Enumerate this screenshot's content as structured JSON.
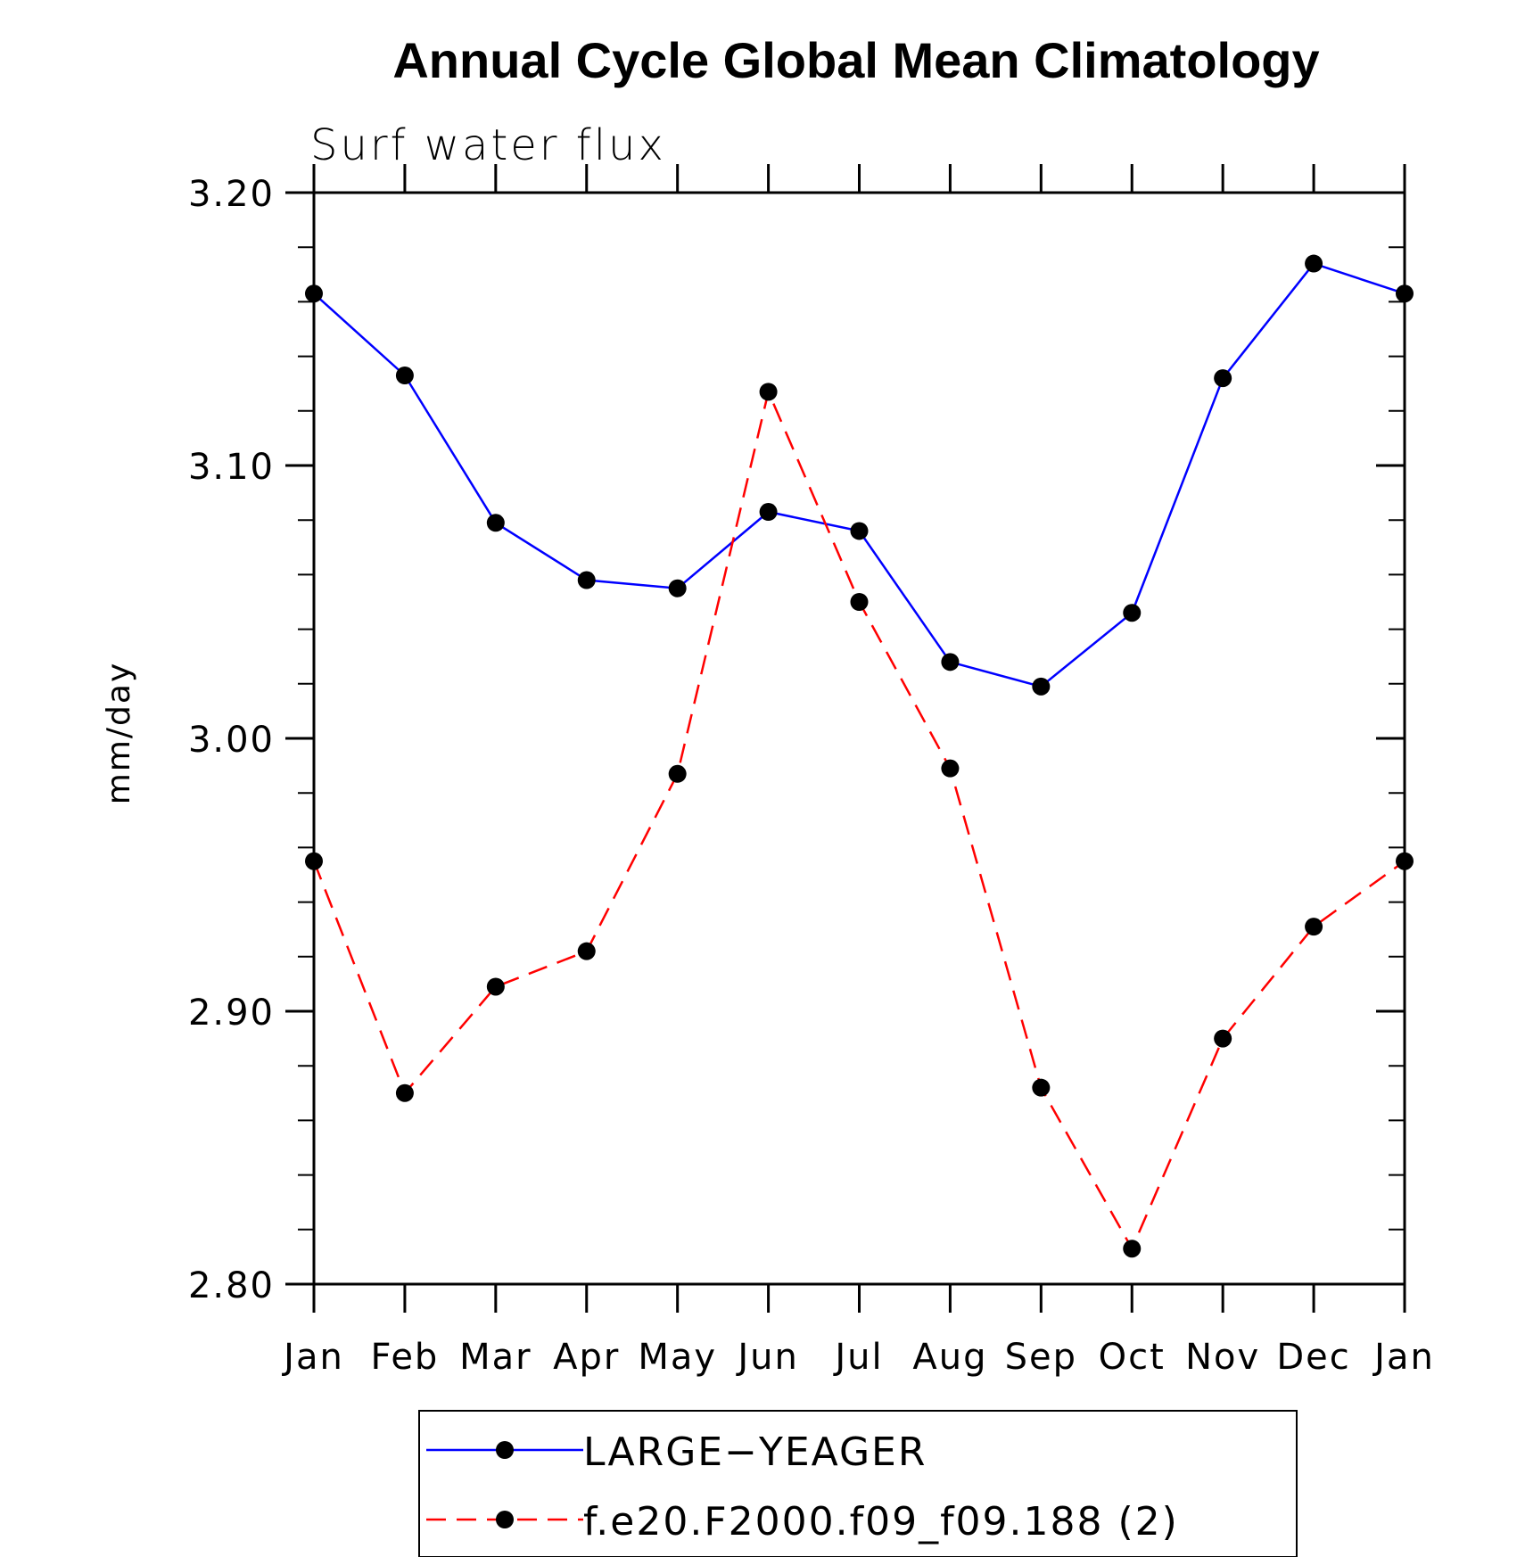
{
  "chart_data": {
    "type": "line",
    "title": "Annual Cycle Global Mean Climatology",
    "subtitle": "Surf water flux",
    "xlabel": "",
    "ylabel": "mm/day",
    "categories": [
      "Jan",
      "Feb",
      "Mar",
      "Apr",
      "May",
      "Jun",
      "Jul",
      "Aug",
      "Sep",
      "Oct",
      "Nov",
      "Dec",
      "Jan"
    ],
    "ylim": [
      2.8,
      3.2
    ],
    "y_ticks": [
      "3.20",
      "3.10",
      "3.00",
      "2.90",
      "2.80"
    ],
    "y_tick_values": [
      3.2,
      3.1,
      3.0,
      2.9,
      2.8
    ],
    "y_minor_step": 0.02,
    "grid": false,
    "legend_position": "bottom-center",
    "series": [
      {
        "name": "LARGE−YEAGER",
        "color": "#0000ff",
        "line_style": "solid",
        "marker": "filled-circle",
        "values": [
          3.163,
          3.133,
          3.079,
          3.058,
          3.055,
          3.083,
          3.076,
          3.028,
          3.019,
          3.046,
          3.132,
          3.174,
          3.163
        ]
      },
      {
        "name": "f.e20.F2000.f09_f09.188 (2)",
        "color": "#ff0000",
        "line_style": "dashed",
        "marker": "filled-circle",
        "values": [
          2.955,
          2.87,
          2.909,
          2.922,
          2.987,
          3.127,
          3.05,
          2.989,
          2.872,
          2.813,
          2.89,
          2.931,
          2.955
        ]
      }
    ]
  }
}
